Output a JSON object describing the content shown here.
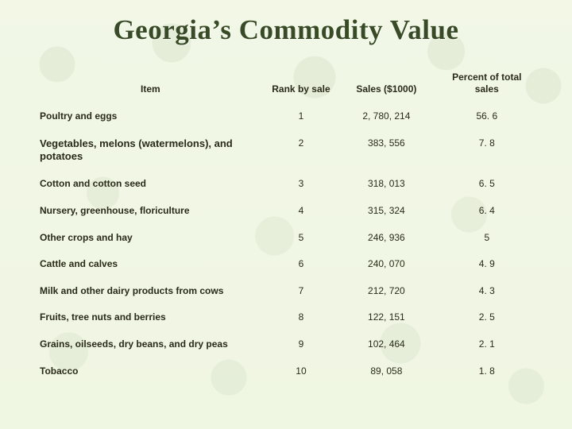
{
  "title": "Georgia’s Commodity Value",
  "table": {
    "type": "table",
    "background_color": "#eef3e1",
    "text_color": "#2a2a18",
    "title_color": "#384b26",
    "title_font": "Times New Roman",
    "title_fontsize": 35,
    "header_fontsize": 12,
    "cell_fontsize": 12,
    "highlight_row_index": 1,
    "columns": [
      {
        "key": "item",
        "label": "Item",
        "align": "left",
        "width_pct": 46
      },
      {
        "key": "rank",
        "label": "Rank by sale",
        "align": "center",
        "width_pct": 14
      },
      {
        "key": "sales",
        "label": "Sales ($1000)",
        "align": "center",
        "width_pct": 20
      },
      {
        "key": "pct",
        "label": "Percent of total sales",
        "align": "center",
        "width_pct": 20
      }
    ],
    "rows": [
      {
        "item": "Poultry and eggs",
        "rank": "1",
        "sales": "2, 780, 214",
        "pct": "56. 6"
      },
      {
        "item": "Vegetables, melons (watermelons), and potatoes",
        "rank": "2",
        "sales": "383, 556",
        "pct": "7. 8"
      },
      {
        "item": "Cotton and cotton seed",
        "rank": "3",
        "sales": "318, 013",
        "pct": "6. 5"
      },
      {
        "item": "Nursery, greenhouse, floriculture",
        "rank": "4",
        "sales": "315, 324",
        "pct": "6. 4"
      },
      {
        "item": "Other crops and hay",
        "rank": "5",
        "sales": "246, 936",
        "pct": "5"
      },
      {
        "item": "Cattle and calves",
        "rank": "6",
        "sales": "240, 070",
        "pct": "4. 9"
      },
      {
        "item": "Milk and other dairy products from cows",
        "rank": "7",
        "sales": "212, 720",
        "pct": "4. 3"
      },
      {
        "item": "Fruits, tree nuts and berries",
        "rank": "8",
        "sales": "122, 151",
        "pct": "2. 5"
      },
      {
        "item": "Grains, oilseeds, dry beans, and dry peas",
        "rank": "9",
        "sales": "102, 464",
        "pct": "2. 1"
      },
      {
        "item": "Tobacco",
        "rank": "10",
        "sales": "89, 058",
        "pct": "1. 8"
      }
    ]
  }
}
